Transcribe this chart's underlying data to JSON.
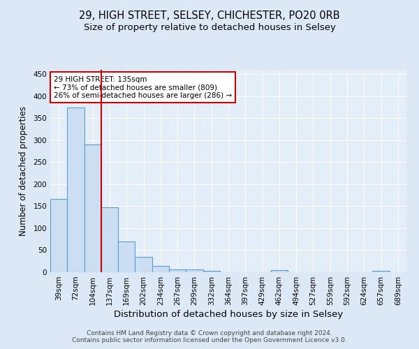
{
  "title1": "29, HIGH STREET, SELSEY, CHICHESTER, PO20 0RB",
  "title2": "Size of property relative to detached houses in Selsey",
  "xlabel": "Distribution of detached houses by size in Selsey",
  "ylabel": "Number of detached properties",
  "categories": [
    "39sqm",
    "72sqm",
    "104sqm",
    "137sqm",
    "169sqm",
    "202sqm",
    "234sqm",
    "267sqm",
    "299sqm",
    "332sqm",
    "364sqm",
    "397sqm",
    "429sqm",
    "462sqm",
    "494sqm",
    "527sqm",
    "559sqm",
    "592sqm",
    "624sqm",
    "657sqm",
    "689sqm"
  ],
  "values": [
    167,
    375,
    290,
    148,
    70,
    35,
    14,
    7,
    6,
    3,
    0,
    0,
    0,
    4,
    0,
    0,
    0,
    0,
    0,
    3,
    0
  ],
  "bar_color": "#ccdff2",
  "bar_edgecolor": "#5b9bd5",
  "vline_x": 2.5,
  "vline_color": "#cc0000",
  "annotation_text": "29 HIGH STREET: 135sqm\n← 73% of detached houses are smaller (809)\n26% of semi-detached houses are larger (286) →",
  "annotation_box_color": "#ffffff",
  "annotation_box_edgecolor": "#cc0000",
  "ylim": [
    0,
    460
  ],
  "yticks": [
    0,
    50,
    100,
    150,
    200,
    250,
    300,
    350,
    400,
    450
  ],
  "bg_color": "#dce8f5",
  "plot_bg_color": "#e4eef8",
  "grid_color": "#ffffff",
  "footer": "Contains HM Land Registry data © Crown copyright and database right 2024.\nContains public sector information licensed under the Open Government Licence v3.0.",
  "title1_fontsize": 10.5,
  "title2_fontsize": 9.5,
  "xlabel_fontsize": 9.5,
  "ylabel_fontsize": 8.5,
  "tick_fontsize": 7.5,
  "footer_fontsize": 6.5
}
